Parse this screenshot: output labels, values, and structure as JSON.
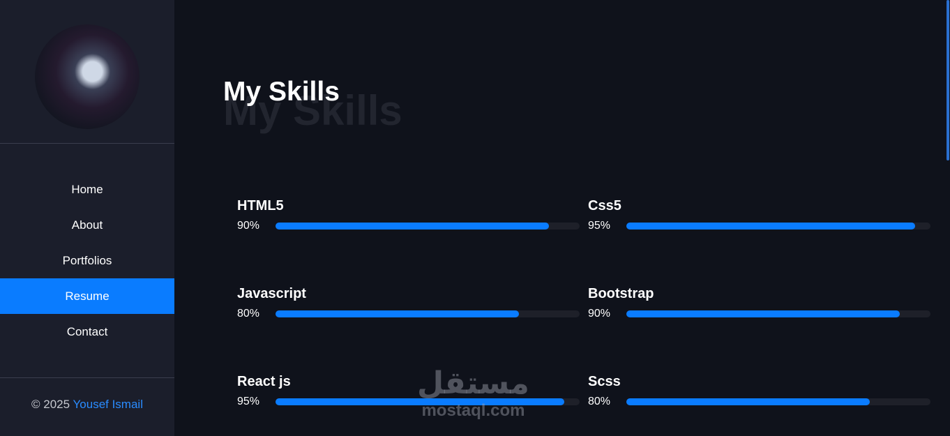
{
  "sidebar": {
    "nav": [
      "Home",
      "About",
      "Portfolios",
      "Resume",
      "Contact"
    ],
    "active": 3,
    "footer": {
      "copyright": "© 2025",
      "author": "Yousef Ismail"
    }
  },
  "main": {
    "title": "My Skills",
    "skills": [
      {
        "name": "HTML5",
        "value": 90,
        "label": "90%"
      },
      {
        "name": "Css5",
        "value": 95,
        "label": "95%"
      },
      {
        "name": "Javascript",
        "value": 80,
        "label": "80%"
      },
      {
        "name": "Bootstrap",
        "value": 90,
        "label": "90%"
      },
      {
        "name": "React js",
        "value": 95,
        "label": "95%"
      },
      {
        "name": "Scss",
        "value": 80,
        "label": "80%"
      }
    ]
  },
  "watermark": {
    "arabic": "مستقل",
    "latin": "mostaql.com"
  }
}
